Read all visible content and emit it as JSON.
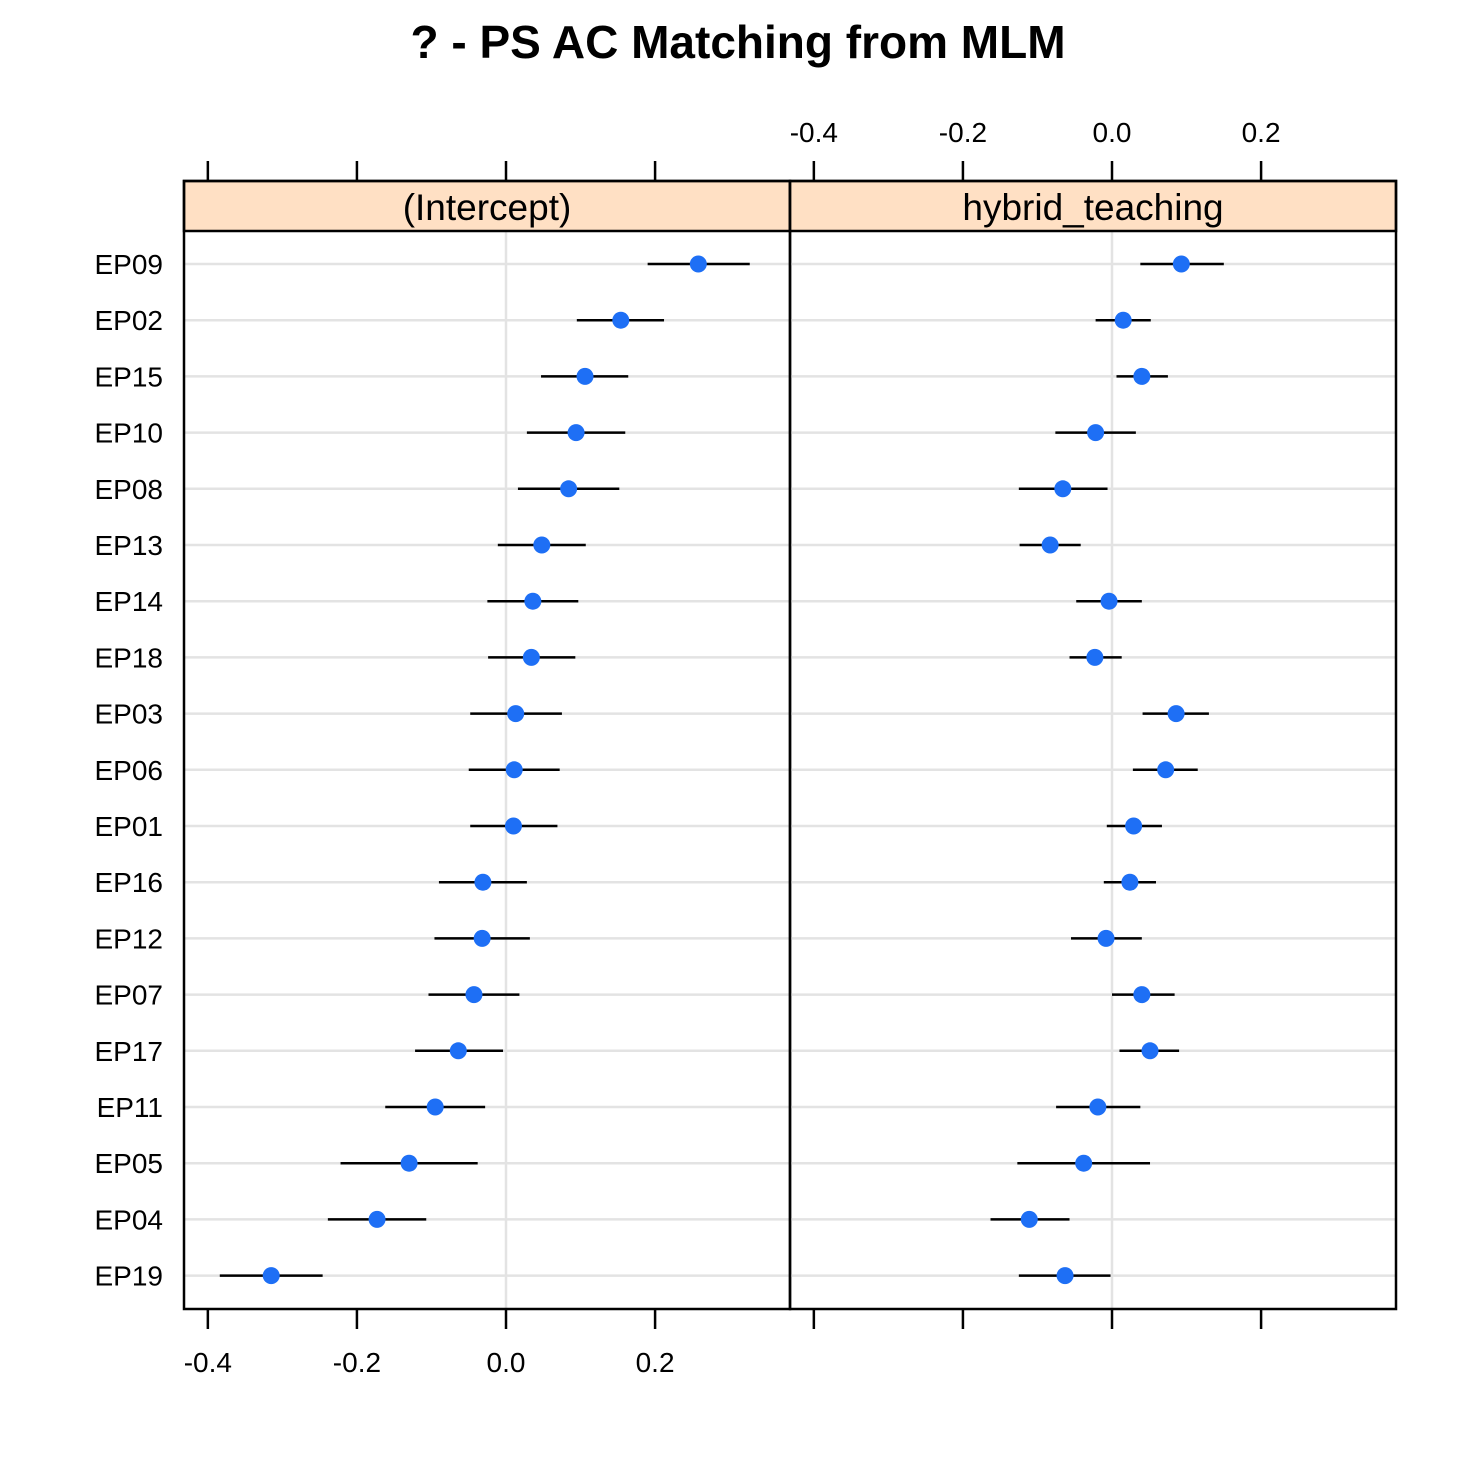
{
  "chart_data": {
    "type": "dotplot",
    "title": "? - PS AC Matching from MLM",
    "layout": "two panels side by side with shared row labels",
    "grid": true,
    "colors": {
      "point": "#1e6ff5",
      "interval": "#000000",
      "strip_fill": "#ffe0c4",
      "gridline": "#e3e3e3"
    },
    "xlim": [
      -0.432,
      0.381
    ],
    "x_ticks": [
      -0.4,
      -0.2,
      0.0,
      0.2
    ],
    "x_tick_labels": [
      "-0.4",
      "-0.2",
      "0.0",
      "0.2"
    ],
    "categories": [
      "EP09",
      "EP02",
      "EP15",
      "EP10",
      "EP08",
      "EP13",
      "EP14",
      "EP18",
      "EP03",
      "EP06",
      "EP01",
      "EP16",
      "EP12",
      "EP07",
      "EP17",
      "EP11",
      "EP05",
      "EP04",
      "EP19"
    ],
    "panels": [
      {
        "name": "(Intercept)",
        "values": [
          0.258,
          0.154,
          0.106,
          0.094,
          0.084,
          0.048,
          0.036,
          0.034,
          0.013,
          0.011,
          0.01,
          -0.031,
          -0.032,
          -0.043,
          -0.064,
          -0.095,
          -0.13,
          -0.173,
          -0.315
        ],
        "lower": [
          0.19,
          0.095,
          0.047,
          0.028,
          0.016,
          -0.011,
          -0.025,
          -0.024,
          -0.048,
          -0.05,
          -0.048,
          -0.09,
          -0.096,
          -0.104,
          -0.122,
          -0.162,
          -0.222,
          -0.239,
          -0.384
        ],
        "upper": [
          0.327,
          0.212,
          0.164,
          0.16,
          0.152,
          0.107,
          0.097,
          0.093,
          0.075,
          0.072,
          0.069,
          0.028,
          0.032,
          0.018,
          -0.004,
          -0.028,
          -0.038,
          -0.107,
          -0.246
        ],
        "x_axis_position": "bottom"
      },
      {
        "name": "hybrid_teaching",
        "values": [
          0.093,
          0.015,
          0.04,
          -0.022,
          -0.066,
          -0.083,
          -0.004,
          -0.023,
          0.086,
          0.072,
          0.029,
          0.024,
          -0.008,
          0.04,
          0.051,
          -0.019,
          -0.038,
          -0.111,
          -0.063
        ],
        "lower": [
          0.038,
          -0.022,
          0.006,
          -0.076,
          -0.125,
          -0.124,
          -0.048,
          -0.057,
          0.041,
          0.028,
          -0.007,
          -0.011,
          -0.055,
          0.0,
          0.01,
          -0.075,
          -0.127,
          -0.163,
          -0.125
        ],
        "upper": [
          0.15,
          0.052,
          0.075,
          0.032,
          -0.006,
          -0.042,
          0.04,
          0.013,
          0.13,
          0.115,
          0.067,
          0.059,
          0.04,
          0.084,
          0.09,
          0.038,
          0.051,
          -0.057,
          -0.002
        ],
        "x_axis_position": "top"
      }
    ]
  }
}
